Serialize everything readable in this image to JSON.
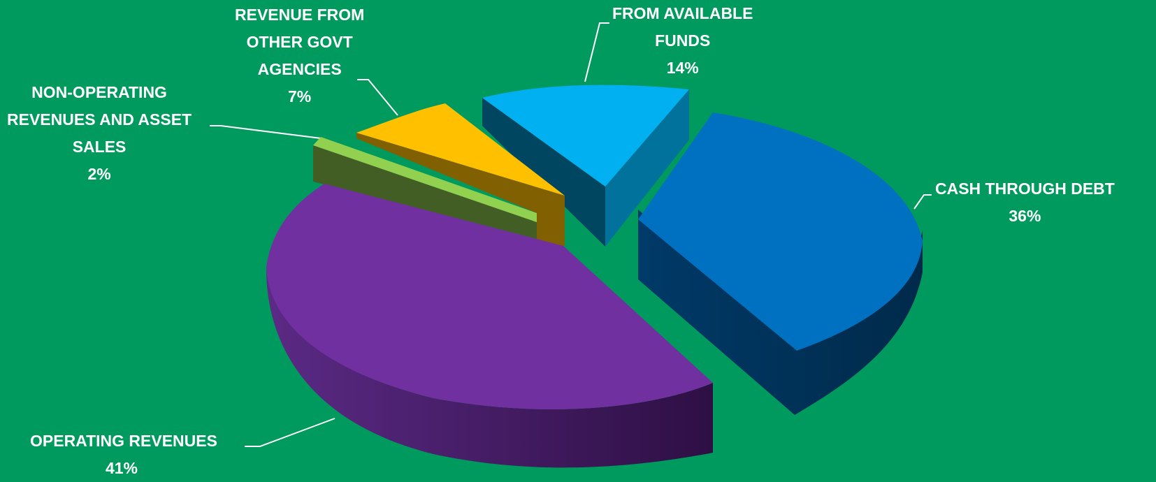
{
  "chart_data": {
    "type": "pie",
    "title": "",
    "style": "3d-exploded",
    "slices": [
      {
        "label_lines": [
          "CASH THROUGH DEBT"
        ],
        "value": 36,
        "pct_label": "36%",
        "color": "#0070c0"
      },
      {
        "label_lines": [
          "OPERATING REVENUES"
        ],
        "value": 41,
        "pct_label": "41%",
        "color": "#7030a0"
      },
      {
        "label_lines": [
          "NON-OPERATING",
          "REVENUES AND ASSET",
          "SALES"
        ],
        "value": 2,
        "pct_label": "2%",
        "color": "#92d050"
      },
      {
        "label_lines": [
          "REVENUE FROM",
          "OTHER GOVT",
          "AGENCIES"
        ],
        "value": 7,
        "pct_label": "7%",
        "color": "#ffc000"
      },
      {
        "label_lines": [
          "FROM AVAILABLE",
          "FUNDS"
        ],
        "value": 14,
        "pct_label": "14%",
        "color": "#00b0f0"
      }
    ]
  }
}
